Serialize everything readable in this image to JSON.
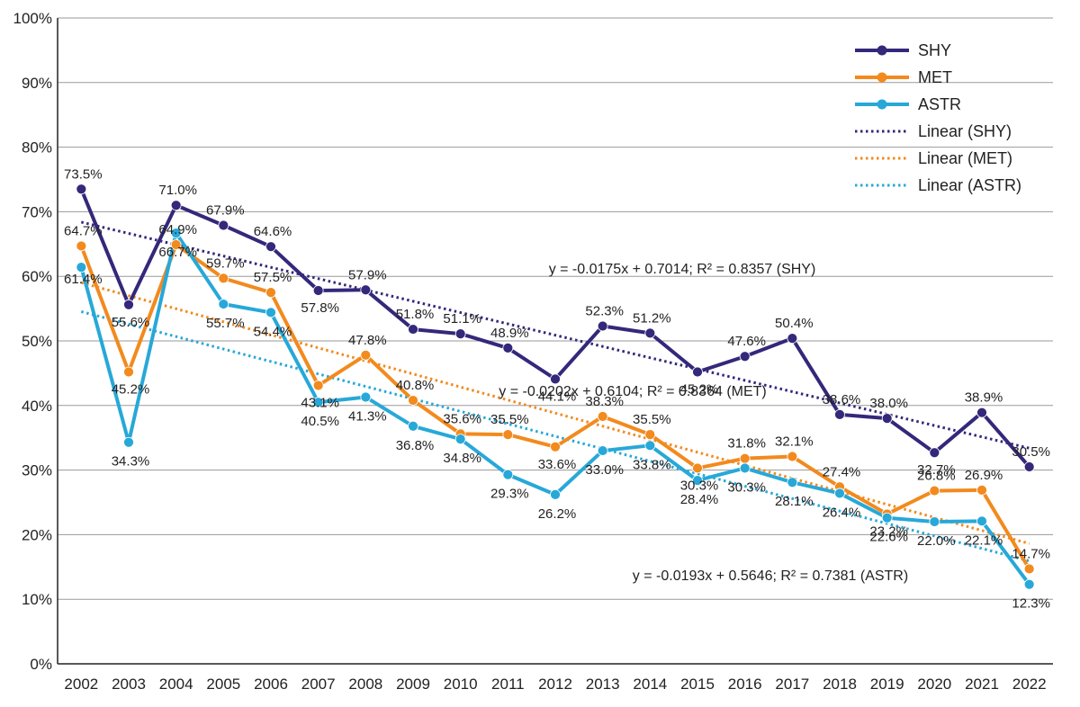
{
  "chart_data": {
    "type": "line",
    "title": "",
    "xlabel": "",
    "ylabel": "",
    "ylim": [
      0,
      100
    ],
    "y_unit": "%",
    "grid": "horizontal",
    "legend_position": "top-right",
    "x": [
      "2002",
      "2003",
      "2004",
      "2005",
      "2006",
      "2007",
      "2008",
      "2009",
      "2010",
      "2011",
      "2012",
      "2013",
      "2014",
      "2015",
      "2016",
      "2017",
      "2018",
      "2019",
      "2020",
      "2021",
      "2022"
    ],
    "y_ticks": [
      "0%",
      "10%",
      "20%",
      "30%",
      "40%",
      "50%",
      "60%",
      "70%",
      "80%",
      "90%",
      "100%"
    ],
    "series": [
      {
        "name": "SHY",
        "color": "#33287a",
        "values": [
          73.5,
          55.6,
          71.0,
          67.9,
          64.6,
          57.8,
          57.9,
          51.8,
          51.1,
          48.9,
          44.1,
          52.3,
          51.2,
          45.2,
          47.6,
          50.4,
          38.6,
          38.0,
          32.7,
          38.9,
          30.5
        ],
        "labels": [
          "73.5%",
          "55.6%",
          "71.0%",
          "67.9%",
          "64.6%",
          "57.8%",
          "57.9%",
          "51.8%",
          "51.1%",
          "48.9%",
          "44.1%",
          "52.3%",
          "51.2%",
          "45.2%",
          "47.6%",
          "50.4%",
          "38.6%",
          "38.0%",
          "32.7%",
          "38.9%",
          "30.5%"
        ]
      },
      {
        "name": "MET",
        "color": "#f28a1e",
        "values": [
          64.7,
          45.2,
          64.9,
          59.7,
          57.5,
          43.1,
          47.8,
          40.8,
          35.6,
          35.5,
          33.6,
          38.3,
          35.5,
          30.3,
          31.8,
          32.1,
          27.4,
          23.2,
          26.8,
          26.9,
          14.7
        ],
        "labels": [
          "64.7%",
          "45.2%",
          "64.9%",
          "59.7%",
          "57.5%",
          "43.1%",
          "47.8%",
          "40.8%",
          "35.6%",
          "35.5%",
          "33.6%",
          "38.3%",
          "35.5%",
          "30.3%",
          "31.8%",
          "32.1%",
          "27.4%",
          "23.2%",
          "26.8%",
          "26.9%",
          "14.7%"
        ]
      },
      {
        "name": "ASTR",
        "color": "#27a8d8",
        "values": [
          61.4,
          34.3,
          66.7,
          55.7,
          54.4,
          40.5,
          41.3,
          36.8,
          34.8,
          29.3,
          26.2,
          33.0,
          33.8,
          28.4,
          30.3,
          28.1,
          26.4,
          22.6,
          22.0,
          22.1,
          12.3
        ],
        "labels": [
          "61.4%",
          "34.3%",
          "66.7%",
          "55.7%",
          "54.4%",
          "40.5%",
          "41.3%",
          "36.8%",
          "34.8%",
          "29.3%",
          "26.2%",
          "33.0%",
          "33.8%",
          "28.4%",
          "30.3%",
          "28.1%",
          "26.4%",
          "22.6%",
          "22.0%",
          "22.1%",
          "12.3%"
        ]
      }
    ],
    "trendlines": [
      {
        "name": "Linear (SHY)",
        "color": "#33287a",
        "slope": -0.0175,
        "intercept": 0.7014,
        "equation": "y = -0.0175x + 0.7014; R² = 0.8357 (SHY)"
      },
      {
        "name": "Linear (MET)",
        "color": "#f28a1e",
        "slope": -0.0202,
        "intercept": 0.6104,
        "equation": "y = -0.0202x + 0.6104; R² = 0.8364 (MET)"
      },
      {
        "name": "Linear (ASTR)",
        "color": "#27a8d8",
        "slope": -0.0193,
        "intercept": 0.5646,
        "equation": "y = -0.0193x + 0.5646; R² = 0.7381 (ASTR)"
      }
    ],
    "legend": [
      "SHY",
      "MET",
      "ASTR",
      "Linear (SHY)",
      "Linear (MET)",
      "Linear (ASTR)"
    ]
  }
}
